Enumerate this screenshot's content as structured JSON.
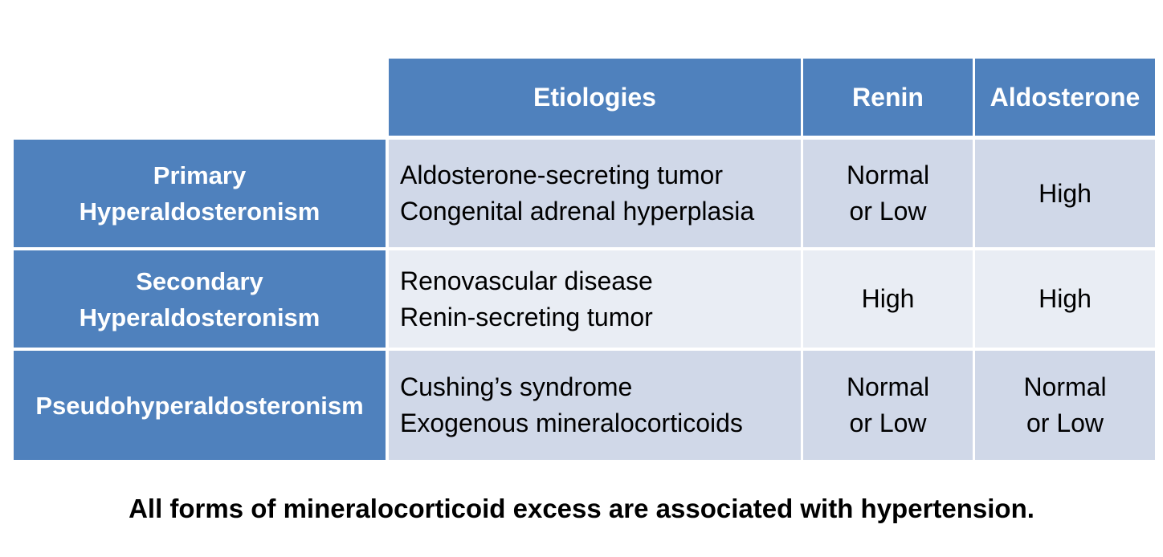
{
  "table": {
    "headers": {
      "etiologies": "Etiologies",
      "renin": "Renin",
      "aldosterone": "Aldosterone"
    },
    "rows": [
      {
        "label_line1": "Primary",
        "label_line2": "Hyperaldosteronism",
        "etiology_line1": "Aldosterone-secreting tumor",
        "etiology_line2": "Congenital adrenal hyperplasia",
        "renin_line1": "Normal",
        "renin_line2": "or Low",
        "aldosterone": "High"
      },
      {
        "label_line1": "Secondary",
        "label_line2": "Hyperaldosteronism",
        "etiology_line1": "Renovascular disease",
        "etiology_line2": "Renin-secreting tumor",
        "renin": "High",
        "aldosterone": "High"
      },
      {
        "label": "Pseudohyperaldosteronism",
        "etiology_line1": "Cushing’s syndrome",
        "etiology_line2": "Exogenous mineralocorticoids",
        "renin_line1": "Normal",
        "renin_line2": "or Low",
        "aldosterone_line1": "Normal",
        "aldosterone_line2": "or Low"
      }
    ]
  },
  "footer": "All forms of mineralocorticoid excess are associated with hypertension.",
  "colors": {
    "header_blue": "#4f81bd",
    "band_dark": "#d0d8e8",
    "band_light": "#e9edf4"
  }
}
